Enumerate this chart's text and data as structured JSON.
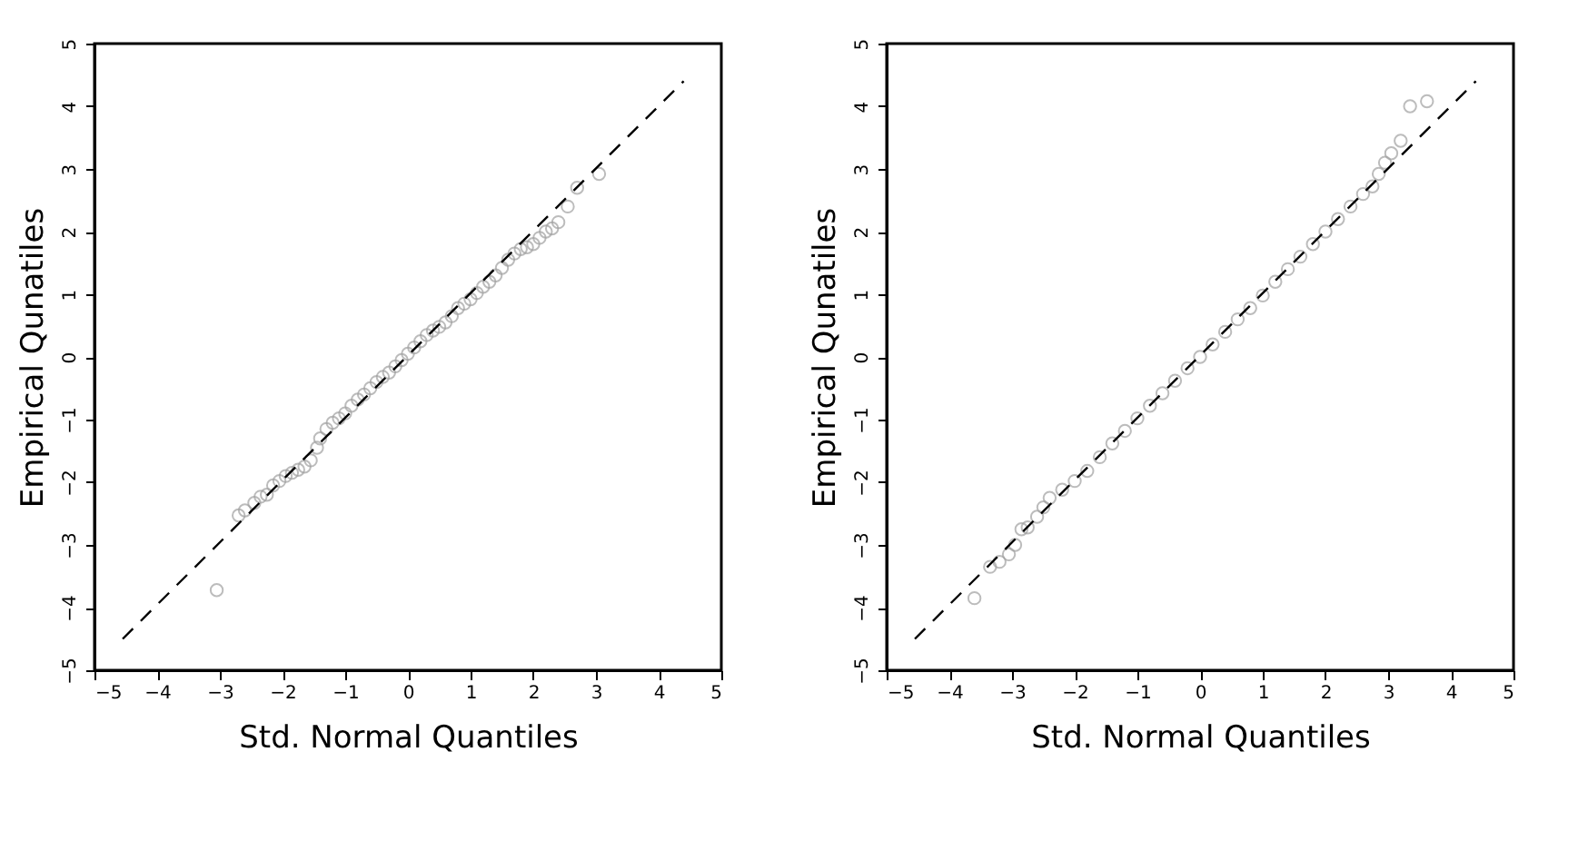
{
  "chart_data": [
    {
      "type": "scatter",
      "xlabel": "Std. Normal Quantiles",
      "ylabel": "Empirical Qunatiles",
      "xlim": [
        -5,
        5
      ],
      "ylim": [
        -5,
        5
      ],
      "xticks": [
        -5,
        -4,
        -3,
        -2,
        -1,
        0,
        1,
        2,
        3,
        4,
        5
      ],
      "yticks": [
        -5,
        -4,
        -3,
        -2,
        -1,
        0,
        1,
        2,
        3,
        4,
        5
      ],
      "grid": false,
      "series": [
        {
          "marker": "circle",
          "color": "#a0a0a0",
          "x": [
            -3.05,
            -2.7,
            -2.6,
            -2.45,
            -2.35,
            -2.25,
            -2.15,
            -2.05,
            -1.95,
            -1.85,
            -1.75,
            -1.65,
            -1.55,
            -1.45,
            -1.4,
            -1.3,
            -1.2,
            -1.1,
            -1.0,
            -0.9,
            -0.8,
            -0.7,
            -0.6,
            -0.5,
            -0.4,
            -0.3,
            -0.2,
            -0.1,
            0,
            0.1,
            0.2,
            0.3,
            0.4,
            0.5,
            0.6,
            0.7,
            0.8,
            0.9,
            1.0,
            1.1,
            1.2,
            1.3,
            1.4,
            1.5,
            1.6,
            1.7,
            1.8,
            1.9,
            2.0,
            2.1,
            2.2,
            2.3,
            2.4,
            2.55,
            2.7,
            3.05
          ],
          "values": [
            -3.72,
            -2.53,
            -2.45,
            -2.33,
            -2.23,
            -2.2,
            -2.05,
            -1.98,
            -1.9,
            -1.85,
            -1.8,
            -1.75,
            -1.65,
            -1.45,
            -1.3,
            -1.15,
            -1.05,
            -0.98,
            -0.9,
            -0.78,
            -0.68,
            -0.6,
            -0.5,
            -0.4,
            -0.32,
            -0.25,
            -0.15,
            -0.05,
            0.05,
            0.15,
            0.25,
            0.35,
            0.42,
            0.48,
            0.55,
            0.65,
            0.78,
            0.85,
            0.92,
            1.02,
            1.12,
            1.2,
            1.3,
            1.42,
            1.55,
            1.65,
            1.72,
            1.75,
            1.8,
            1.9,
            2.0,
            2.05,
            2.15,
            2.4,
            2.7,
            2.92
          ]
        },
        {
          "type": "line",
          "line_style": "dashed",
          "marker": "none",
          "color": "#000000",
          "x": [
            -4.55,
            4.4
          ],
          "values": [
            -4.5,
            4.4
          ]
        }
      ]
    },
    {
      "type": "scatter",
      "xlabel": "Std. Normal Quantiles",
      "ylabel": "Empirical Qunatiles",
      "xlim": [
        -5,
        5
      ],
      "ylim": [
        -5,
        5
      ],
      "xticks": [
        -5,
        -4,
        -3,
        -2,
        -1,
        0,
        1,
        2,
        3,
        4,
        5
      ],
      "yticks": [
        -5,
        -4,
        -3,
        -2,
        -1,
        0,
        1,
        2,
        3,
        4,
        5
      ],
      "grid": false,
      "series": [
        {
          "marker": "circle",
          "color": "#a0a0a0",
          "x": [
            -3.6,
            -3.35,
            -3.2,
            -3.05,
            -2.95,
            -2.85,
            -2.75,
            -2.6,
            -2.5,
            -2.4,
            -2.2,
            -2.0,
            -1.8,
            -1.6,
            -1.4,
            -1.2,
            -1.0,
            -0.8,
            -0.6,
            -0.4,
            -0.2,
            0,
            0.2,
            0.4,
            0.6,
            0.8,
            1.0,
            1.2,
            1.4,
            1.6,
            1.8,
            2.0,
            2.2,
            2.4,
            2.6,
            2.75,
            2.85,
            2.95,
            3.05,
            3.2,
            3.35,
            3.62
          ],
          "values": [
            -3.85,
            -3.35,
            -3.27,
            -3.15,
            -3.0,
            -2.75,
            -2.72,
            -2.55,
            -2.4,
            -2.25,
            -2.12,
            -1.98,
            -1.82,
            -1.6,
            -1.38,
            -1.18,
            -0.98,
            -0.78,
            -0.58,
            -0.38,
            -0.18,
            0.0,
            0.2,
            0.4,
            0.6,
            0.78,
            0.98,
            1.2,
            1.4,
            1.6,
            1.8,
            2.0,
            2.2,
            2.4,
            2.6,
            2.72,
            2.92,
            3.1,
            3.25,
            3.45,
            4.0,
            4.08
          ]
        },
        {
          "type": "line",
          "line_style": "dashed",
          "marker": "none",
          "color": "#000000",
          "x": [
            -4.55,
            4.4
          ],
          "values": [
            -4.5,
            4.4
          ]
        }
      ]
    }
  ]
}
